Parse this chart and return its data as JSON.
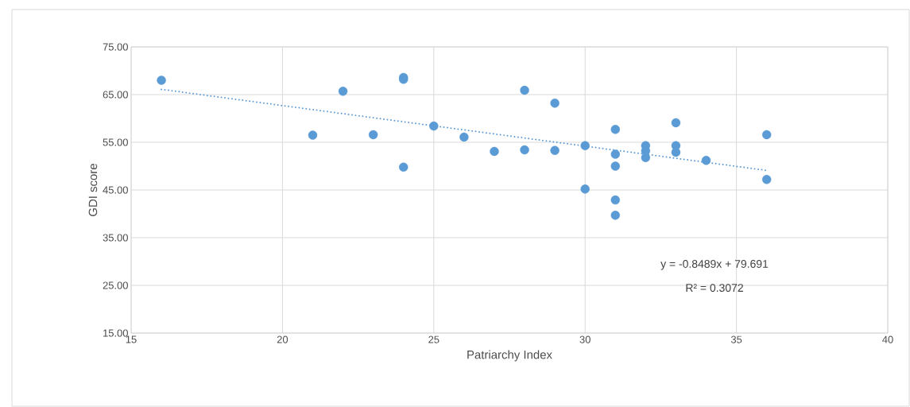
{
  "chart_data": {
    "type": "scatter",
    "xlabel": "Patriarchy Index",
    "ylabel": "GDI score",
    "series": [
      {
        "color": "#5b9bd5",
        "marker": "circle",
        "x": [
          16,
          21,
          22,
          23,
          24,
          24,
          24,
          25,
          26,
          27,
          28,
          28,
          29,
          29,
          30,
          30,
          31,
          31,
          31,
          31,
          31,
          32,
          32,
          32,
          33,
          33,
          33,
          34,
          36,
          36
        ],
        "values": [
          68.0,
          56.5,
          65.7,
          56.6,
          68.6,
          68.2,
          49.8,
          58.4,
          56.1,
          53.1,
          65.9,
          53.4,
          63.2,
          53.3,
          54.3,
          45.2,
          57.7,
          52.5,
          50.0,
          42.9,
          39.7,
          54.3,
          53.2,
          51.8,
          59.1,
          54.3,
          52.9,
          51.2,
          56.6,
          47.2
        ]
      },
      {
        "type": "line",
        "color": "#5b9bd5",
        "marker": "none",
        "line_style": "dotted",
        "x": [
          16,
          36
        ],
        "values": [
          66.1,
          49.1
        ]
      }
    ],
    "annotations": [
      "y = -0.8489x + 79.691",
      "R² = 0.3072"
    ],
    "xlim": [
      15,
      40
    ],
    "xticks": [
      15,
      20,
      25,
      30,
      35,
      40
    ],
    "ylim": [
      15,
      75
    ],
    "yticks": [
      {
        "value": 15,
        "label": "15.00"
      },
      {
        "value": 25,
        "label": "25.00"
      },
      {
        "value": 35,
        "label": "35.00"
      },
      {
        "value": 45,
        "label": "45.00"
      },
      {
        "value": 55,
        "label": "55.00"
      },
      {
        "value": 65,
        "label": "65.00"
      },
      {
        "value": 75,
        "label": "75.00"
      }
    ],
    "grid": true
  }
}
